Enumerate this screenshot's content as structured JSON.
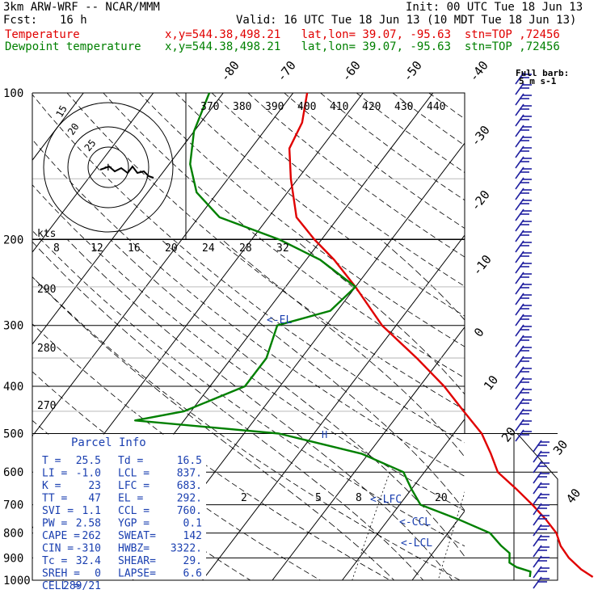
{
  "header": {
    "model": "3km ARW-WRF -- NCAR/MMM",
    "init": "Init: 00 UTC Tue 18 Jun 13",
    "fcst_label": "Fcst:",
    "fcst_value": "16 h",
    "valid": "Valid: 16 UTC Tue 18 Jun 13 (10 MDT Tue 18 Jun 13)",
    "lines": [
      {
        "name": "Temperature",
        "info": "x,y=544.38,498.21   lat,lon= 39.07, -95.63  stn=TOP ,72456",
        "color": "#e00000"
      },
      {
        "name": "Dewpoint temperature",
        "info": "x,y=544.38,498.21   lat,lon= 39.07, -95.63  stn=TOP ,72456",
        "color": "#008000"
      }
    ]
  },
  "colors": {
    "temperature": "#e00000",
    "dewpoint": "#008000",
    "wind": "#2020a0",
    "text_blue": "#1a3fb0",
    "grid": "#000000"
  },
  "pressure_labels": [
    "100",
    "200",
    "300",
    "400",
    "500",
    "600",
    "700",
    "800",
    "900",
    "1000"
  ],
  "temp_diag_labels": [
    "-80",
    "-70",
    "-60",
    "-50",
    "-40",
    "-30",
    "-20",
    "-10",
    "0",
    "10",
    "20",
    "30",
    "40"
  ],
  "theta_labels": [
    "370",
    "380",
    "390",
    "400",
    "410",
    "420",
    "430",
    "440"
  ],
  "theta_side_labels": [
    "290",
    "280",
    "270"
  ],
  "hodo_speed_labels": [
    "8",
    "12",
    "16",
    "20",
    "24",
    "28",
    "32"
  ],
  "hodo_unit": "kts",
  "hodo_ring_labels": [
    "15",
    "20",
    "25"
  ],
  "mixing_ratio_labels": [
    "2",
    "5",
    "8",
    "20"
  ],
  "level_labels": [
    "<-EL",
    "<-LFC",
    "<-CCL",
    "<-LCL"
  ],
  "barb_legend": {
    "line1": "Full barb:",
    "line2": "5 m s-1"
  },
  "parcel_info": {
    "title": "Parcel Info",
    "rows": [
      [
        "T  =",
        "25.5",
        "Td =",
        "16.5"
      ],
      [
        "LI =",
        "-1.0",
        "LCL =",
        "837."
      ],
      [
        "K  =",
        "23",
        "LFC =",
        "683."
      ],
      [
        "TT =",
        "47",
        "EL  =",
        "292."
      ],
      [
        "SVI =",
        "1.1",
        "CCL =",
        "760."
      ],
      [
        "PW =",
        "2.58",
        "YGP =",
        "0.1"
      ],
      [
        "CAPE =",
        "262",
        "SWEAT=",
        "142"
      ],
      [
        "CIN =",
        "-310",
        "HWBZ=",
        "3322."
      ],
      [
        "Tc =",
        "32.4",
        "SHEAR=",
        "29."
      ],
      [
        "SREH =",
        "0",
        "LAPSE=",
        "6.6"
      ],
      [
        "CELL =",
        "289/21",
        "",
        ""
      ]
    ]
  },
  "chart_data": {
    "type": "line",
    "chart_kind": "skew-T log-P sounding",
    "y_axis": "pressure (hPa), log scale",
    "ylim": [
      1000,
      100
    ],
    "skew_temperature_range_c": [
      -80,
      40
    ],
    "series": [
      {
        "name": "Temperature",
        "unit": "C",
        "points": [
          [
            985,
            25.5
          ],
          [
            950,
            23.0
          ],
          [
            900,
            20.0
          ],
          [
            850,
            17.5
          ],
          [
            800,
            15.5
          ],
          [
            750,
            12.5
          ],
          [
            700,
            9.0
          ],
          [
            650,
            5.0
          ],
          [
            600,
            0.5
          ],
          [
            550,
            -2.5
          ],
          [
            500,
            -6.0
          ],
          [
            450,
            -11.0
          ],
          [
            400,
            -16.5
          ],
          [
            350,
            -23.5
          ],
          [
            300,
            -32.0
          ],
          [
            250,
            -40.0
          ],
          [
            220,
            -46.0
          ],
          [
            200,
            -51.0
          ],
          [
            180,
            -56.0
          ],
          [
            150,
            -61.0
          ],
          [
            130,
            -64.5
          ],
          [
            115,
            -65.5
          ],
          [
            100,
            -68.0
          ]
        ]
      },
      {
        "name": "Dewpoint temperature",
        "unit": "C",
        "points": [
          [
            985,
            16.5
          ],
          [
            960,
            16.0
          ],
          [
            940,
            13.5
          ],
          [
            920,
            12.0
          ],
          [
            880,
            11.0
          ],
          [
            850,
            9.0
          ],
          [
            800,
            6.0
          ],
          [
            750,
            0.0
          ],
          [
            700,
            -7.0
          ],
          [
            650,
            -10.0
          ],
          [
            600,
            -13.0
          ],
          [
            550,
            -21.0
          ],
          [
            500,
            -35.0
          ],
          [
            470,
            -57.0
          ],
          [
            450,
            -51.0
          ],
          [
            400,
            -45.0
          ],
          [
            350,
            -45.0
          ],
          [
            300,
            -47.0
          ],
          [
            280,
            -41.0
          ],
          [
            250,
            -40.0
          ],
          [
            220,
            -48.0
          ],
          [
            200,
            -56.0
          ],
          [
            180,
            -67.0
          ],
          [
            160,
            -73.0
          ],
          [
            140,
            -77.0
          ],
          [
            120,
            -80.0
          ],
          [
            100,
            -82.0
          ]
        ]
      }
    ],
    "wind_barbs_right_column": true
  }
}
